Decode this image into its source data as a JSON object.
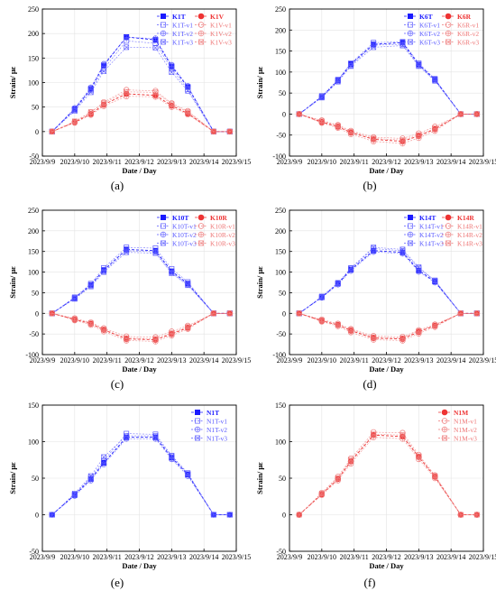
{
  "figure": {
    "xtick_labels": [
      "2023/9/9",
      "2023/9/10",
      "2023/9/11",
      "2023/9/12",
      "2023/9/13",
      "2023/9/14",
      "2023/9/15"
    ],
    "xlabel": "Date / Day",
    "ylabel": "Strain/ με"
  },
  "chart_data": [
    {
      "type": "line",
      "panel_label": "(a)",
      "xlabel": "Date / Day",
      "ylabel": "Strain/ με",
      "xlim": [
        0,
        6
      ],
      "ylim": [
        -50,
        250
      ],
      "yticks": [
        -50,
        0,
        50,
        100,
        150,
        200,
        250
      ],
      "x_dates": [
        "2023/9/9",
        "2023/9/10",
        "2023/9/11",
        "2023/9/12",
        "2023/9/13",
        "2023/9/14",
        "2023/9/15"
      ],
      "x": [
        0.3,
        1.0,
        1.5,
        1.9,
        2.6,
        3.5,
        4.0,
        4.5,
        5.3,
        5.8
      ],
      "grid": true,
      "legend_position": "top-right",
      "series": [
        {
          "name": "K1T",
          "color": "#1a1aff",
          "marker": "filled-square",
          "values": [
            0,
            46,
            87,
            135,
            193,
            187,
            133,
            91,
            0,
            0
          ]
        },
        {
          "name": "K1T-v1",
          "color": "#5a5aff",
          "marker": "open-square",
          "values": [
            0,
            44,
            84,
            128,
            185,
            180,
            128,
            86,
            0,
            0
          ]
        },
        {
          "name": "K1T-v2",
          "color": "#5a5aff",
          "marker": "circle-plus",
          "values": [
            0,
            48,
            90,
            138,
            192,
            190,
            136,
            93,
            0,
            0
          ]
        },
        {
          "name": "K1T-v3",
          "color": "#5a5aff",
          "marker": "square-x",
          "values": [
            0,
            42,
            80,
            123,
            172,
            171,
            121,
            83,
            0,
            0
          ]
        },
        {
          "name": "K1V",
          "color": "#ee3333",
          "marker": "filled-circle",
          "values": [
            0,
            19,
            36,
            55,
            77,
            74,
            53,
            37,
            0,
            0
          ]
        },
        {
          "name": "K1V-v1",
          "color": "#ee7777",
          "marker": "open-circle",
          "values": [
            0,
            20,
            39,
            60,
            85,
            83,
            58,
            42,
            0,
            0
          ]
        },
        {
          "name": "K1V-v2",
          "color": "#ee7777",
          "marker": "circle-plus",
          "values": [
            0,
            18,
            34,
            52,
            72,
            71,
            50,
            35,
            0,
            0
          ]
        },
        {
          "name": "K1V-v3",
          "color": "#ee7777",
          "marker": "square-x",
          "values": [
            0,
            21,
            40,
            58,
            81,
            80,
            56,
            40,
            0,
            0
          ]
        }
      ]
    },
    {
      "type": "line",
      "panel_label": "(b)",
      "xlabel": "Date / Day",
      "ylabel": "Strain/ με",
      "xlim": [
        0,
        6
      ],
      "ylim": [
        -100,
        250
      ],
      "yticks": [
        -100,
        -50,
        0,
        50,
        100,
        150,
        200,
        250
      ],
      "x_dates": [
        "2023/9/9",
        "2023/9/10",
        "2023/9/11",
        "2023/9/12",
        "2023/9/13",
        "2023/9/14",
        "2023/9/15"
      ],
      "x": [
        0.3,
        1.0,
        1.5,
        1.9,
        2.6,
        3.5,
        4.0,
        4.5,
        5.3,
        5.8
      ],
      "grid": true,
      "legend_position": "top-right",
      "series": [
        {
          "name": "K6T",
          "color": "#1a1aff",
          "marker": "filled-square",
          "values": [
            0,
            41,
            80,
            119,
            166,
            170,
            118,
            82,
            0,
            0
          ]
        },
        {
          "name": "K6T-v1",
          "color": "#5a5aff",
          "marker": "open-square",
          "values": [
            0,
            43,
            82,
            121,
            170,
            172,
            121,
            84,
            0,
            0
          ]
        },
        {
          "name": "K6T-v2",
          "color": "#5a5aff",
          "marker": "circle-plus",
          "values": [
            0,
            40,
            78,
            116,
            164,
            166,
            116,
            80,
            0,
            0
          ]
        },
        {
          "name": "K6T-v3",
          "color": "#5a5aff",
          "marker": "square-x",
          "values": [
            0,
            39,
            77,
            114,
            159,
            163,
            114,
            79,
            0,
            0
          ]
        },
        {
          "name": "K6R",
          "color": "#ee3333",
          "marker": "filled-circle",
          "values": [
            0,
            -19,
            -30,
            -44,
            -60,
            -65,
            -52,
            -36,
            0,
            0
          ]
        },
        {
          "name": "K6R-v1",
          "color": "#ee7777",
          "marker": "open-circle",
          "values": [
            0,
            -15,
            -26,
            -40,
            -55,
            -58,
            -46,
            -30,
            0,
            0
          ]
        },
        {
          "name": "K6R-v2",
          "color": "#ee7777",
          "marker": "circle-plus",
          "values": [
            0,
            -21,
            -33,
            -48,
            -65,
            -70,
            -57,
            -40,
            0,
            0
          ]
        },
        {
          "name": "K6R-v3",
          "color": "#ee7777",
          "marker": "square-x",
          "values": [
            0,
            -17,
            -28,
            -42,
            -58,
            -62,
            -50,
            -34,
            0,
            0
          ]
        }
      ]
    },
    {
      "type": "line",
      "panel_label": "(c)",
      "xlabel": "Date / Day",
      "ylabel": "Strain/ με",
      "xlim": [
        0,
        6
      ],
      "ylim": [
        -100,
        250
      ],
      "yticks": [
        -100,
        -50,
        0,
        50,
        100,
        150,
        200,
        250
      ],
      "x_dates": [
        "2023/9/9",
        "2023/9/10",
        "2023/9/11",
        "2023/9/12",
        "2023/9/13",
        "2023/9/14",
        "2023/9/15"
      ],
      "x": [
        0.3,
        1.0,
        1.5,
        1.9,
        2.6,
        3.5,
        4.0,
        4.5,
        5.3,
        5.8
      ],
      "grid": true,
      "legend_position": "top-right",
      "series": [
        {
          "name": "K10T",
          "color": "#1a1aff",
          "marker": "filled-square",
          "values": [
            0,
            37,
            69,
            105,
            155,
            152,
            102,
            72,
            0,
            0
          ]
        },
        {
          "name": "K10T-v1",
          "color": "#5a5aff",
          "marker": "open-square",
          "values": [
            0,
            39,
            72,
            110,
            160,
            158,
            108,
            76,
            0,
            0
          ]
        },
        {
          "name": "K10T-v2",
          "color": "#5a5aff",
          "marker": "circle-plus",
          "values": [
            0,
            36,
            67,
            102,
            152,
            149,
            99,
            70,
            0,
            0
          ]
        },
        {
          "name": "K10T-v3",
          "color": "#5a5aff",
          "marker": "square-x",
          "values": [
            0,
            35,
            65,
            100,
            148,
            146,
            97,
            68,
            0,
            0
          ]
        },
        {
          "name": "K10R",
          "color": "#ee3333",
          "marker": "filled-circle",
          "values": [
            0,
            -15,
            -25,
            -40,
            -62,
            -64,
            -50,
            -35,
            0,
            0
          ]
        },
        {
          "name": "K10R-v1",
          "color": "#ee7777",
          "marker": "open-circle",
          "values": [
            0,
            -12,
            -22,
            -36,
            -56,
            -58,
            -44,
            -30,
            0,
            0
          ]
        },
        {
          "name": "K10R-v2",
          "color": "#ee7777",
          "marker": "circle-plus",
          "values": [
            0,
            -17,
            -28,
            -44,
            -66,
            -68,
            -54,
            -38,
            0,
            0
          ]
        },
        {
          "name": "K10R-v3",
          "color": "#ee7777",
          "marker": "square-x",
          "values": [
            0,
            -14,
            -24,
            -39,
            -60,
            -62,
            -48,
            -33,
            0,
            0
          ]
        }
      ]
    },
    {
      "type": "line",
      "panel_label": "(d)",
      "xlabel": "Date / Day",
      "ylabel": "Strain/ με",
      "xlim": [
        0,
        6
      ],
      "ylim": [
        -100,
        250
      ],
      "yticks": [
        -100,
        -50,
        0,
        50,
        100,
        150,
        200,
        250
      ],
      "x_dates": [
        "2023/9/9",
        "2023/9/10",
        "2023/9/11",
        "2023/9/12",
        "2023/9/13",
        "2023/9/14",
        "2023/9/15"
      ],
      "x": [
        0.3,
        1.0,
        1.5,
        1.9,
        2.6,
        3.5,
        4.0,
        4.5,
        5.3,
        5.8
      ],
      "grid": true,
      "legend_position": "top-right",
      "series": [
        {
          "name": "K14T",
          "color": "#1a1aff",
          "marker": "filled-square",
          "values": [
            0,
            39,
            72,
            106,
            152,
            148,
            104,
            77,
            0,
            0
          ]
        },
        {
          "name": "K14T-v1",
          "color": "#5a5aff",
          "marker": "open-square",
          "values": [
            0,
            41,
            74,
            109,
            157,
            152,
            109,
            80,
            0,
            0
          ]
        },
        {
          "name": "K14T-v2",
          "color": "#5a5aff",
          "marker": "circle-plus",
          "values": [
            0,
            38,
            70,
            103,
            149,
            145,
            101,
            75,
            0,
            0
          ]
        },
        {
          "name": "K14T-v3",
          "color": "#5a5aff",
          "marker": "square-x",
          "values": [
            0,
            40,
            73,
            110,
            160,
            155,
            112,
            79,
            0,
            0
          ]
        },
        {
          "name": "K14R",
          "color": "#ee3333",
          "marker": "filled-circle",
          "values": [
            0,
            -18,
            -28,
            -42,
            -60,
            -62,
            -45,
            -30,
            0,
            0
          ]
        },
        {
          "name": "K14R-v1",
          "color": "#ee7777",
          "marker": "open-circle",
          "values": [
            0,
            -15,
            -25,
            -38,
            -55,
            -57,
            -41,
            -27,
            0,
            0
          ]
        },
        {
          "name": "K14R-v2",
          "color": "#ee7777",
          "marker": "circle-plus",
          "values": [
            0,
            -20,
            -31,
            -46,
            -64,
            -66,
            -49,
            -33,
            0,
            0
          ]
        },
        {
          "name": "K14R-v3",
          "color": "#ee7777",
          "marker": "square-x",
          "values": [
            0,
            -17,
            -27,
            -40,
            -58,
            -60,
            -43,
            -29,
            0,
            0
          ]
        }
      ]
    },
    {
      "type": "line",
      "panel_label": "(e)",
      "xlabel": "Date / Day",
      "ylabel": "Strain/ με",
      "xlim": [
        0,
        6
      ],
      "ylim": [
        -50,
        150
      ],
      "yticks": [
        -50,
        0,
        50,
        100,
        150
      ],
      "x_dates": [
        "2023/9/9",
        "2023/9/10",
        "2023/9/11",
        "2023/9/12",
        "2023/9/13",
        "2023/9/14",
        "2023/9/15"
      ],
      "x": [
        0.3,
        1.0,
        1.5,
        1.9,
        2.6,
        3.5,
        4.0,
        4.5,
        5.3,
        5.8
      ],
      "grid": true,
      "legend_position": "top-right",
      "series": [
        {
          "name": "N1T",
          "color": "#1a1aff",
          "marker": "filled-square",
          "values": [
            0,
            27,
            49,
            71,
            106,
            106,
            78,
            55,
            0,
            0
          ]
        },
        {
          "name": "N1T-v1",
          "color": "#5a5aff",
          "marker": "open-square",
          "values": [
            0,
            28,
            51,
            74,
            111,
            110,
            81,
            57,
            0,
            0
          ]
        },
        {
          "name": "N1T-v2",
          "color": "#5a5aff",
          "marker": "circle-plus",
          "values": [
            0,
            26,
            47,
            69,
            104,
            104,
            76,
            53,
            0,
            0
          ]
        },
        {
          "name": "N1T-v3",
          "color": "#5a5aff",
          "marker": "square-x",
          "values": [
            0,
            29,
            53,
            79,
            108,
            108,
            80,
            56,
            0,
            0
          ]
        }
      ]
    },
    {
      "type": "line",
      "panel_label": "(f)",
      "xlabel": "Date / Day",
      "ylabel": "Strain/ με",
      "xlim": [
        0,
        6
      ],
      "ylim": [
        -50,
        150
      ],
      "yticks": [
        -50,
        0,
        50,
        100,
        150
      ],
      "x_dates": [
        "2023/9/9",
        "2023/9/10",
        "2023/9/11",
        "2023/9/12",
        "2023/9/13",
        "2023/9/14",
        "2023/9/15"
      ],
      "x": [
        0.3,
        1.0,
        1.5,
        1.9,
        2.6,
        3.5,
        4.0,
        4.5,
        5.3,
        5.8
      ],
      "grid": true,
      "legend_position": "top-right",
      "series": [
        {
          "name": "N1M",
          "color": "#ee3333",
          "marker": "filled-circle",
          "values": [
            0,
            28,
            49,
            73,
            109,
            107,
            79,
            52,
            0,
            0
          ]
        },
        {
          "name": "N1M-v1",
          "color": "#ee7777",
          "marker": "open-circle",
          "values": [
            0,
            30,
            52,
            77,
            113,
            112,
            82,
            54,
            0,
            0
          ]
        },
        {
          "name": "N1M-v2",
          "color": "#ee7777",
          "marker": "circle-plus",
          "values": [
            0,
            27,
            47,
            70,
            106,
            104,
            76,
            50,
            0,
            0
          ]
        },
        {
          "name": "N1M-v3",
          "color": "#ee7777",
          "marker": "square-x",
          "values": [
            0,
            29,
            50,
            75,
            110,
            109,
            80,
            53,
            0,
            0
          ]
        }
      ]
    }
  ]
}
